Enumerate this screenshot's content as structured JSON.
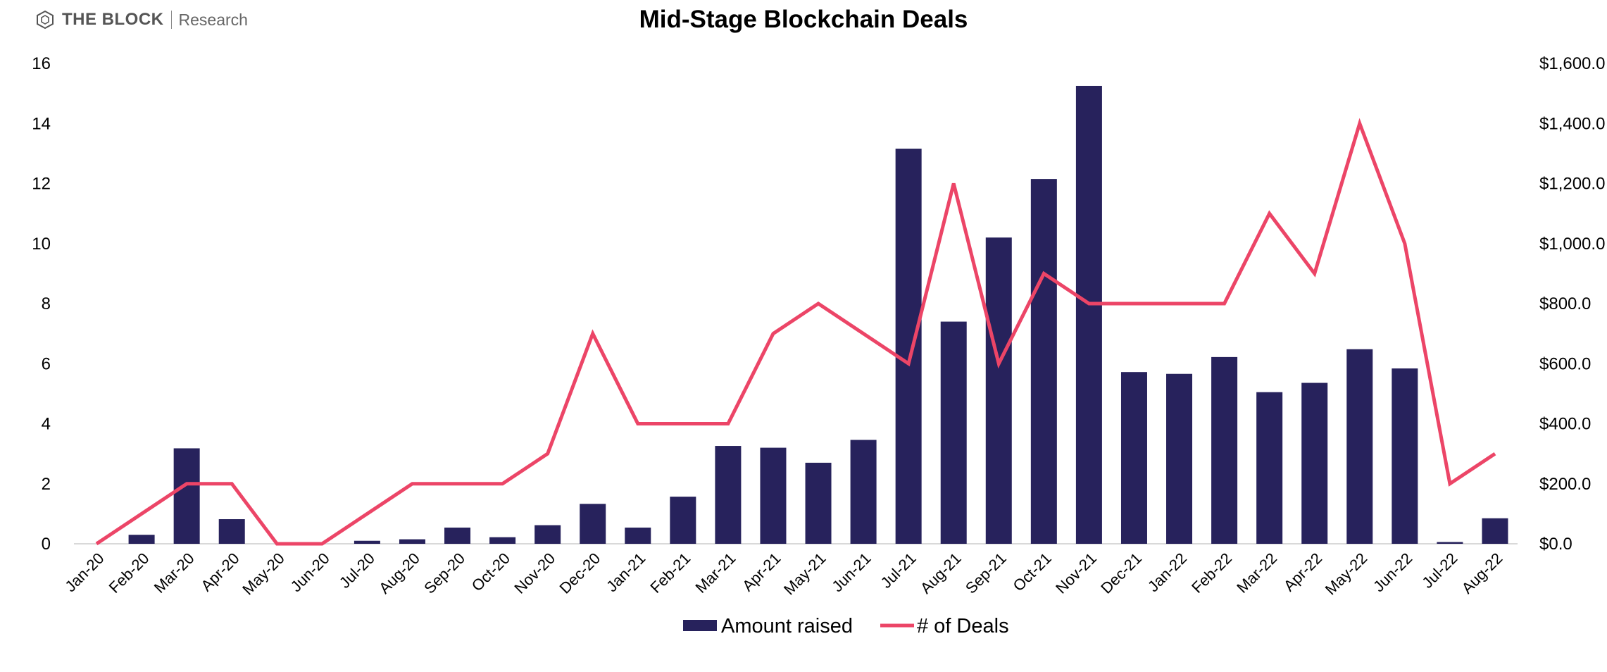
{
  "header": {
    "brand": "THE BLOCK",
    "brand_sub": "Research",
    "title": "Mid-Stage Blockchain Deals"
  },
  "chart_data": {
    "type": "bar",
    "title": "Mid-Stage Blockchain Deals",
    "categories": [
      "Jan-20",
      "Feb-20",
      "Mar-20",
      "Apr-20",
      "May-20",
      "Jun-20",
      "Jul-20",
      "Aug-20",
      "Sep-20",
      "Oct-20",
      "Nov-20",
      "Dec-20",
      "Jan-21",
      "Feb-21",
      "Mar-21",
      "Apr-21",
      "May-21",
      "Jun-21",
      "Jul-21",
      "Aug-21",
      "Sep-21",
      "Oct-21",
      "Nov-21",
      "Dec-21",
      "Jan-22",
      "Feb-22",
      "Mar-22",
      "Apr-22",
      "May-22",
      "Jun-22",
      "Jul-22",
      "Aug-22"
    ],
    "series": [
      {
        "name": "Amount raised",
        "type": "bar",
        "axis": "right",
        "color": "#27225c",
        "values": [
          0,
          30,
          318,
          82,
          0,
          0,
          10,
          15,
          54,
          22,
          62,
          133,
          54,
          157,
          326,
          320,
          270,
          346,
          1316,
          740,
          1020,
          1215,
          1525,
          572,
          566,
          622,
          505,
          536,
          648,
          584,
          6,
          85
        ]
      },
      {
        "name": "# of Deals",
        "type": "line",
        "axis": "left",
        "color": "#ec4567",
        "values": [
          0,
          1,
          2,
          2,
          0,
          0,
          1,
          2,
          2,
          2,
          3,
          7,
          4,
          4,
          4,
          7,
          8,
          7,
          6,
          12,
          6,
          9,
          8,
          8,
          8,
          8,
          11,
          9,
          14,
          10,
          2,
          3
        ]
      }
    ],
    "y_left": {
      "min": 0,
      "max": 16,
      "ticks": [
        "0",
        "2",
        "4",
        "6",
        "8",
        "10",
        "12",
        "14",
        "16"
      ]
    },
    "y_right": {
      "min": 0,
      "max": 1600,
      "ticks": [
        "$0.0",
        "$200.0",
        "$400.0",
        "$600.0",
        "$800.0",
        "$1,000.0",
        "$1,200.0",
        "$1,400.0",
        "$1,600.0"
      ]
    },
    "legend": {
      "position": "bottom",
      "items": [
        "Amount raised",
        "# of Deals"
      ]
    },
    "grid": false
  }
}
